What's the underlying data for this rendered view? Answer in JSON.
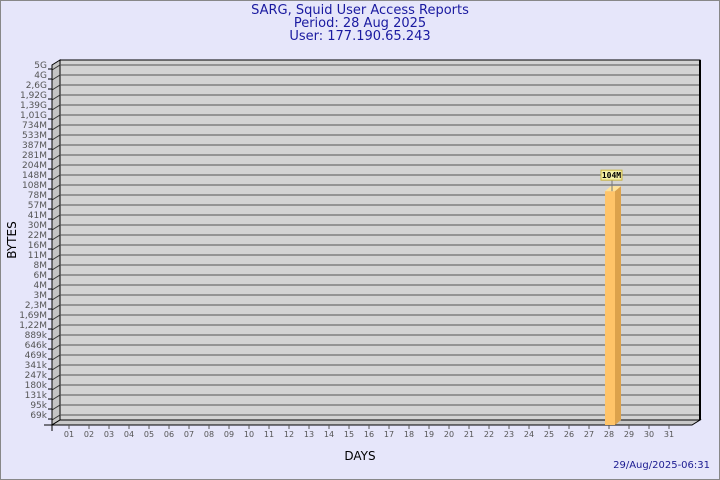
{
  "chart_data": {
    "type": "bar",
    "title": "SARG, Squid User Access Reports",
    "subtitle": [
      "Period: 28 Aug 2025",
      "User: 177.190.65.243"
    ],
    "xlabel": "DAYS",
    "ylabel": "BYTES",
    "yscale": "log",
    "grid": true,
    "yticks": [
      "5G",
      "4G",
      "2,6G",
      "1,92G",
      "1,39G",
      "1,01G",
      "734M",
      "533M",
      "387M",
      "281M",
      "204M",
      "148M",
      "108M",
      "78M",
      "57M",
      "41M",
      "30M",
      "22M",
      "16M",
      "11M",
      "8M",
      "6M",
      "4M",
      "3M",
      "2,3M",
      "1,69M",
      "1,22M",
      "889k",
      "646k",
      "469k",
      "341k",
      "247k",
      "180k",
      "131k",
      "95k",
      "69k"
    ],
    "categories": [
      "01",
      "02",
      "03",
      "04",
      "05",
      "06",
      "07",
      "08",
      "09",
      "10",
      "11",
      "12",
      "13",
      "14",
      "15",
      "16",
      "17",
      "18",
      "19",
      "20",
      "21",
      "22",
      "23",
      "24",
      "25",
      "26",
      "27",
      "28",
      "29",
      "30",
      "31"
    ],
    "bars": [
      {
        "category": "28",
        "value": 104000000,
        "label": "104M"
      }
    ],
    "colors": {
      "bar_front": "#ffc469",
      "bar_side": "#dca24c",
      "bar_top": "#ffe39a",
      "wall": "#d3d3d3",
      "label_bg": "#f5f0a8"
    }
  },
  "footer": {
    "timestamp": "29/Aug/2025-06:31"
  }
}
